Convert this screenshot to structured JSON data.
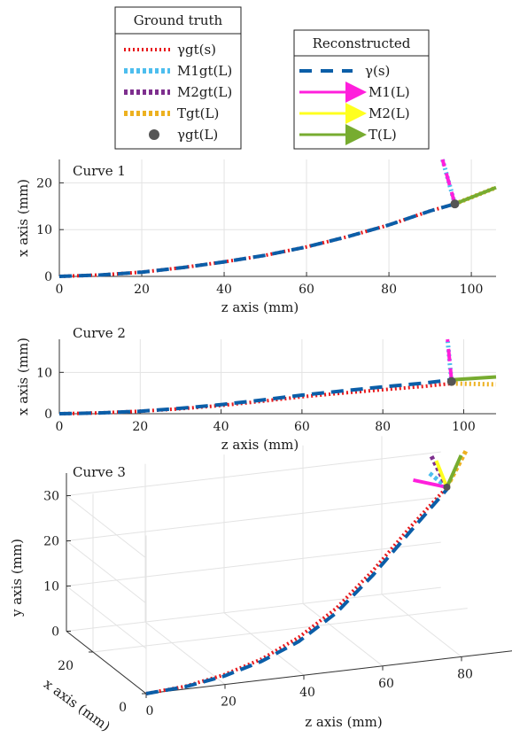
{
  "legend_gt": {
    "title": "Ground truth",
    "entries": [
      {
        "label": "γgt(s)",
        "color": "#e8191c",
        "style": "dotted"
      },
      {
        "label": "M1gt(L)",
        "color": "#4dbeee",
        "style": "dotted"
      },
      {
        "label": "M2gt(L)",
        "color": "#7e2f8e",
        "style": "dotted"
      },
      {
        "label": "Tgt(L)",
        "color": "#edb120",
        "style": "dotted"
      },
      {
        "label": "γgt(L)",
        "color": "#555555",
        "style": "marker"
      }
    ]
  },
  "legend_rec": {
    "title": "Reconstructed",
    "entries": [
      {
        "label": "γ(s)",
        "color": "#0b5ea8",
        "style": "dashed"
      },
      {
        "label": "M1(L)",
        "color": "#ff1fdc",
        "style": "arrow"
      },
      {
        "label": "M2(L)",
        "color": "#ffff1f",
        "style": "arrow"
      },
      {
        "label": "T(L)",
        "color": "#77ac30",
        "style": "arrow"
      }
    ]
  },
  "chart_data": [
    {
      "type": "line",
      "title": "Curve 1",
      "xlabel": "z axis (mm)",
      "ylabel": "x axis (mm)",
      "xlim": [
        0,
        106
      ],
      "ylim": [
        0,
        25
      ],
      "xticks": [
        0,
        20,
        40,
        60,
        80,
        100
      ],
      "yticks": [
        0,
        10,
        20
      ],
      "grid": true,
      "series": [
        {
          "name": "γgt(s)",
          "color": "#e8191c",
          "style": "dotted",
          "x": [
            0,
            10,
            20,
            30,
            40,
            50,
            60,
            70,
            80,
            90,
            96
          ],
          "y": [
            0,
            0.3,
            0.9,
            1.9,
            3.1,
            4.5,
            6.3,
            8.5,
            11.0,
            14.0,
            15.5
          ]
        },
        {
          "name": "γ(s)",
          "color": "#0b5ea8",
          "style": "dashed",
          "x": [
            0,
            10,
            20,
            30,
            40,
            50,
            60,
            70,
            80,
            90,
            96
          ],
          "y": [
            0,
            0.3,
            0.9,
            1.9,
            3.1,
            4.5,
            6.3,
            8.5,
            11.0,
            14.0,
            15.5
          ]
        },
        {
          "name": "M1gt(L)",
          "color": "#4dbeee",
          "style": "dotted",
          "x": [
            96,
            93
          ],
          "y": [
            15.5,
            25
          ]
        },
        {
          "name": "M1(L)",
          "color": "#ff1fdc",
          "style": "dashed",
          "x": [
            96,
            93
          ],
          "y": [
            15.5,
            25
          ]
        },
        {
          "name": "Tgt(L)",
          "color": "#edb120",
          "style": "dotted",
          "x": [
            96,
            106
          ],
          "y": [
            15.5,
            19
          ]
        },
        {
          "name": "T(L)",
          "color": "#77ac30",
          "style": "solid",
          "x": [
            96,
            106
          ],
          "y": [
            15.5,
            19
          ]
        }
      ],
      "markers": [
        {
          "name": "γgt(L)",
          "x": 96,
          "y": 15.5,
          "color": "#555555"
        }
      ]
    },
    {
      "type": "line",
      "title": "Curve 2",
      "xlabel": "z axis (mm)",
      "ylabel": "x axis (mm)",
      "xlim": [
        0,
        108
      ],
      "ylim": [
        0,
        18
      ],
      "xticks": [
        0,
        20,
        40,
        60,
        80,
        100
      ],
      "yticks": [
        0,
        10
      ],
      "grid": true,
      "series": [
        {
          "name": "γgt(s)",
          "color": "#e8191c",
          "style": "dotted",
          "x": [
            0,
            10,
            20,
            30,
            40,
            50,
            60,
            70,
            80,
            90,
            97
          ],
          "y": [
            0,
            0.2,
            0.6,
            1.2,
            2.0,
            3.0,
            4.1,
            5.0,
            5.8,
            6.6,
            7.3
          ]
        },
        {
          "name": "γ(s)",
          "color": "#0b5ea8",
          "style": "dashed",
          "x": [
            0,
            10,
            20,
            30,
            40,
            50,
            60,
            70,
            80,
            90,
            97
          ],
          "y": [
            0,
            0.2,
            0.6,
            1.3,
            2.2,
            3.3,
            4.5,
            5.5,
            6.5,
            7.4,
            8.2
          ]
        },
        {
          "name": "M1gt(L)",
          "color": "#4dbeee",
          "style": "dotted",
          "x": [
            97,
            96
          ],
          "y": [
            7.5,
            18
          ]
        },
        {
          "name": "M1(L)",
          "color": "#ff1fdc",
          "style": "dashed",
          "x": [
            97,
            96
          ],
          "y": [
            8,
            18
          ]
        },
        {
          "name": "Tgt(L)",
          "color": "#edb120",
          "style": "dotted",
          "x": [
            97,
            108
          ],
          "y": [
            7.3,
            7.1
          ]
        },
        {
          "name": "T(L)",
          "color": "#77ac30",
          "style": "solid",
          "x": [
            97,
            108
          ],
          "y": [
            8.2,
            8.9
          ]
        }
      ],
      "markers": [
        {
          "name": "γgt(L)",
          "x": 97,
          "y": 7.8,
          "color": "#555555"
        }
      ]
    },
    {
      "type": "line",
      "title": "Curve 3",
      "xlabel": "z axis (mm)",
      "ylabel": "y axis (mm)",
      "zlabel": "x axis (mm)",
      "zticks": [
        0,
        20,
        40,
        60,
        80
      ],
      "yticks": [
        0,
        10,
        20,
        30
      ],
      "xticks": [
        0,
        20
      ],
      "grid": true,
      "series": [
        {
          "name": "γgt(s)",
          "color": "#e8191c",
          "style": "dotted",
          "z": [
            0,
            10,
            20,
            30,
            40,
            50,
            60,
            70,
            80
          ],
          "y": [
            0,
            0.5,
            1.8,
            4.0,
            7.5,
            12.5,
            19.5,
            27.5,
            35.0
          ],
          "x": [
            0,
            0.2,
            0.6,
            1.2,
            1.9,
            2.7,
            3.6,
            4.6,
            5.5
          ]
        },
        {
          "name": "γ(s)",
          "color": "#0b5ea8",
          "style": "dashed",
          "z": [
            0,
            10,
            20,
            30,
            40,
            50,
            60,
            70,
            80
          ],
          "y": [
            0,
            0.4,
            1.5,
            3.5,
            6.6,
            11.5,
            18.5,
            26.5,
            34.5
          ],
          "x": [
            0,
            0.2,
            0.6,
            1.2,
            1.9,
            2.7,
            3.6,
            4.6,
            5.5
          ]
        }
      ]
    }
  ]
}
